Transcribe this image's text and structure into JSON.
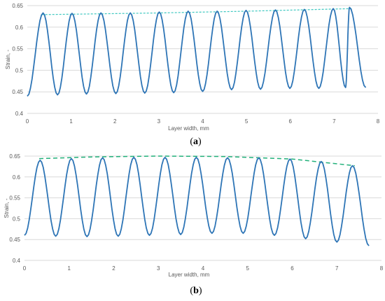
{
  "chart_data": [
    {
      "type": "line",
      "panel_label_open": "(",
      "panel_label_letter": "a",
      "panel_label_close": ")",
      "xlabel": "Layer width, mm",
      "ylabel": "Strain, -",
      "xlim": [
        0,
        8
      ],
      "ylim": [
        0.4,
        0.65
      ],
      "xticks": [
        "0",
        "1",
        "2",
        "3",
        "4",
        "5",
        "6",
        "7",
        "8"
      ],
      "yticks": [
        "0.4",
        "0.45",
        "0.5",
        "0.55",
        "0.6",
        "0.65"
      ],
      "grid": true,
      "colors": {
        "strain": "#2e75b6",
        "trend": "#3fc8c0"
      },
      "peaks_x": [
        0.36,
        1.02,
        1.68,
        2.35,
        3.01,
        3.67,
        4.33,
        4.99,
        5.66,
        6.32,
        6.98,
        7.35
      ],
      "peaks_y": [
        0.633,
        0.632,
        0.633,
        0.633,
        0.635,
        0.637,
        0.637,
        0.639,
        0.64,
        0.641,
        0.643,
        0.646
      ],
      "valleys_x": [
        0.0,
        0.69,
        1.35,
        2.02,
        2.68,
        3.34,
        4.0,
        4.66,
        5.32,
        5.99,
        6.65,
        7.26
      ],
      "valleys_y": [
        0.44,
        0.443,
        0.445,
        0.446,
        0.447,
        0.448,
        0.451,
        0.455,
        0.456,
        0.458,
        0.458,
        0.46
      ],
      "end_x": 7.72,
      "end_y": 0.46,
      "series": [
        {
          "type": "trend",
          "x": [
            0.33,
            3.0,
            5.0,
            7.4
          ],
          "y": [
            0.629,
            0.633,
            0.637,
            0.643
          ]
        }
      ]
    },
    {
      "type": "line",
      "panel_label_open": "(",
      "panel_label_letter": "b",
      "panel_label_close": ")",
      "xlabel": "Layer width, mm",
      "ylabel": "Strain, -",
      "xlim": [
        0,
        8
      ],
      "ylim": [
        0.4,
        0.65
      ],
      "xticks": [
        "0",
        "1",
        "2",
        "3",
        "4",
        "5",
        "6",
        "7",
        "8"
      ],
      "yticks": [
        "0.4",
        "0.45",
        "0.5",
        "0.55",
        "0.6",
        "0.65"
      ],
      "grid": true,
      "colors": {
        "strain": "#2e75b6",
        "trend": "#22b07a"
      },
      "peaks_x": [
        0.35,
        1.05,
        1.75,
        2.45,
        3.15,
        3.85,
        4.55,
        5.25,
        5.95,
        6.65,
        7.35
      ],
      "peaks_y": [
        0.64,
        0.644,
        0.646,
        0.647,
        0.647,
        0.647,
        0.646,
        0.646,
        0.643,
        0.637,
        0.627
      ],
      "valleys_x": [
        0.0,
        0.7,
        1.4,
        2.1,
        2.8,
        3.5,
        4.2,
        4.9,
        5.6,
        6.3,
        7.0
      ],
      "valleys_y": [
        0.46,
        0.458,
        0.457,
        0.458,
        0.46,
        0.462,
        0.465,
        0.465,
        0.46,
        0.452,
        0.444
      ],
      "end_x": 7.72,
      "end_y": 0.435,
      "series": [
        {
          "type": "trend",
          "x": [
            0.33,
            1.5,
            3.0,
            4.5,
            6.0,
            7.4
          ],
          "y": [
            0.644,
            0.648,
            0.65,
            0.649,
            0.643,
            0.627
          ]
        }
      ]
    }
  ]
}
